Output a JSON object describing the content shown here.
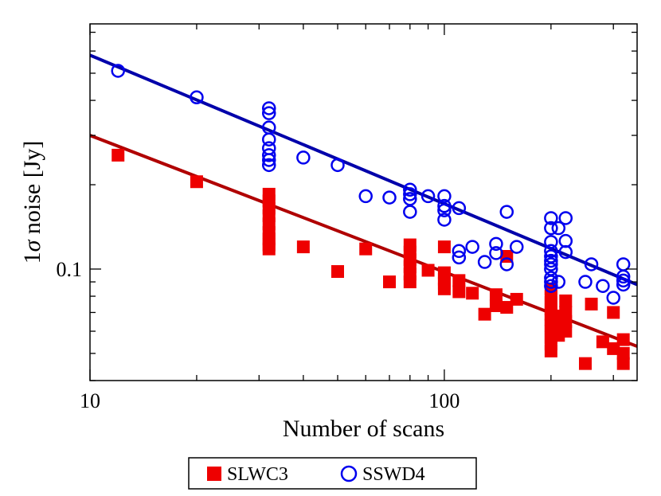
{
  "chart_data": {
    "type": "scatter",
    "xscale": "log",
    "yscale": "log",
    "xlim": [
      10,
      350
    ],
    "ylim": [
      0.04,
      0.75
    ],
    "xlabel": "Number of scans",
    "ylabel_prefix": "1",
    "ylabel_sigma": "σ",
    "ylabel_suffix": " noise [Jy]",
    "x_ticks": [
      10,
      100
    ],
    "x_tick_labels": [
      "10",
      "100"
    ],
    "y_ticks": [
      0.1
    ],
    "y_tick_labels": [
      "0.1"
    ],
    "legend_position": "bottom-center",
    "series": [
      {
        "name": "SLWC3",
        "marker": "filled-square",
        "color": "#ee0000",
        "fit_color": "#b00000",
        "fit": {
          "x": [
            10,
            350
          ],
          "y": [
            0.3,
            0.053
          ]
        },
        "points": [
          [
            12,
            0.255
          ],
          [
            20,
            0.205
          ],
          [
            32,
            0.185
          ],
          [
            32,
            0.175
          ],
          [
            32,
            0.165
          ],
          [
            32,
            0.155
          ],
          [
            32,
            0.145
          ],
          [
            32,
            0.135
          ],
          [
            32,
            0.128
          ],
          [
            32,
            0.122
          ],
          [
            32,
            0.118
          ],
          [
            40,
            0.12
          ],
          [
            50,
            0.098
          ],
          [
            60,
            0.118
          ],
          [
            70,
            0.09
          ],
          [
            80,
            0.122
          ],
          [
            80,
            0.115
          ],
          [
            80,
            0.108
          ],
          [
            80,
            0.102
          ],
          [
            80,
            0.096
          ],
          [
            80,
            0.09
          ],
          [
            90,
            0.099
          ],
          [
            100,
            0.12
          ],
          [
            100,
            0.097
          ],
          [
            100,
            0.092
          ],
          [
            100,
            0.089
          ],
          [
            100,
            0.085
          ],
          [
            110,
            0.091
          ],
          [
            110,
            0.083
          ],
          [
            120,
            0.082
          ],
          [
            130,
            0.069
          ],
          [
            140,
            0.081
          ],
          [
            140,
            0.074
          ],
          [
            150,
            0.111
          ],
          [
            150,
            0.073
          ],
          [
            160,
            0.078
          ],
          [
            200,
            0.085
          ],
          [
            200,
            0.08
          ],
          [
            200,
            0.076
          ],
          [
            200,
            0.072
          ],
          [
            200,
            0.069
          ],
          [
            200,
            0.066
          ],
          [
            200,
            0.063
          ],
          [
            200,
            0.06
          ],
          [
            200,
            0.057
          ],
          [
            200,
            0.054
          ],
          [
            200,
            0.051
          ],
          [
            210,
            0.068
          ],
          [
            210,
            0.063
          ],
          [
            210,
            0.058
          ],
          [
            220,
            0.077
          ],
          [
            220,
            0.07
          ],
          [
            220,
            0.065
          ],
          [
            220,
            0.06
          ],
          [
            250,
            0.046
          ],
          [
            260,
            0.075
          ],
          [
            280,
            0.055
          ],
          [
            300,
            0.07
          ],
          [
            300,
            0.052
          ],
          [
            320,
            0.056
          ],
          [
            320,
            0.05
          ],
          [
            320,
            0.046
          ]
        ]
      },
      {
        "name": "SSWD4",
        "marker": "open-circle",
        "color": "#0000ee",
        "fit_color": "#0000aa",
        "fit": {
          "x": [
            10,
            350
          ],
          "y": [
            0.58,
            0.088
          ]
        },
        "points": [
          [
            12,
            0.51
          ],
          [
            20,
            0.41
          ],
          [
            32,
            0.375
          ],
          [
            32,
            0.36
          ],
          [
            32,
            0.32
          ],
          [
            32,
            0.29
          ],
          [
            32,
            0.27
          ],
          [
            32,
            0.255
          ],
          [
            32,
            0.245
          ],
          [
            32,
            0.235
          ],
          [
            40,
            0.25
          ],
          [
            50,
            0.235
          ],
          [
            60,
            0.182
          ],
          [
            70,
            0.18
          ],
          [
            80,
            0.192
          ],
          [
            80,
            0.185
          ],
          [
            80,
            0.178
          ],
          [
            80,
            0.16
          ],
          [
            90,
            0.182
          ],
          [
            100,
            0.182
          ],
          [
            100,
            0.168
          ],
          [
            100,
            0.162
          ],
          [
            100,
            0.15
          ],
          [
            110,
            0.165
          ],
          [
            110,
            0.116
          ],
          [
            110,
            0.11
          ],
          [
            120,
            0.12
          ],
          [
            130,
            0.106
          ],
          [
            140,
            0.123
          ],
          [
            140,
            0.114
          ],
          [
            150,
            0.16
          ],
          [
            150,
            0.104
          ],
          [
            160,
            0.12
          ],
          [
            200,
            0.152
          ],
          [
            200,
            0.14
          ],
          [
            200,
            0.125
          ],
          [
            200,
            0.116
          ],
          [
            200,
            0.111
          ],
          [
            200,
            0.107
          ],
          [
            200,
            0.104
          ],
          [
            200,
            0.1
          ],
          [
            200,
            0.093
          ],
          [
            200,
            0.09
          ],
          [
            200,
            0.087
          ],
          [
            210,
            0.14
          ],
          [
            210,
            0.09
          ],
          [
            220,
            0.152
          ],
          [
            220,
            0.126
          ],
          [
            220,
            0.115
          ],
          [
            250,
            0.09
          ],
          [
            260,
            0.104
          ],
          [
            280,
            0.087
          ],
          [
            300,
            0.079
          ],
          [
            320,
            0.104
          ],
          [
            320,
            0.094
          ],
          [
            320,
            0.091
          ],
          [
            320,
            0.088
          ]
        ]
      }
    ]
  }
}
